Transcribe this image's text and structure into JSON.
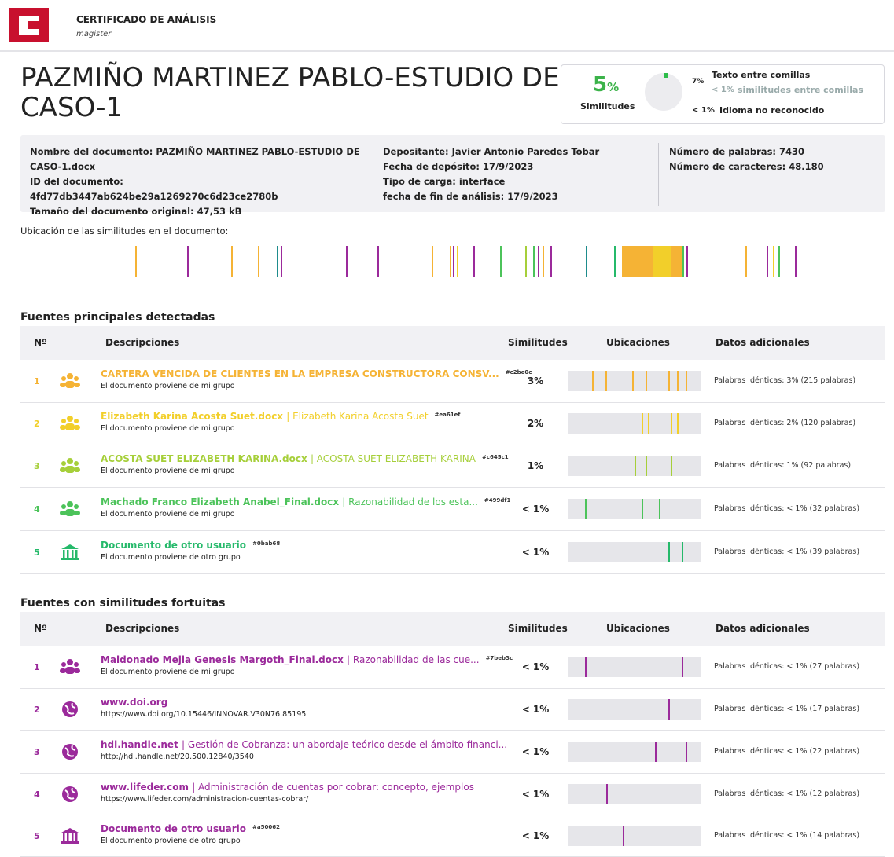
{
  "header": {
    "brand_title": "CERTIFICADO DE ANÁLISIS",
    "brand_sub": "magister"
  },
  "title": "PAZMIÑO MARTINEZ PABLO-ESTUDIO DE CASO-1",
  "summary": {
    "percent": "5",
    "percent_unit": "%",
    "label": "Similitudes",
    "items": [
      {
        "pct": "7%",
        "label": "Texto entre comillas"
      },
      {
        "pct": "< 1%",
        "label": "similitudes entre comillas"
      },
      {
        "pct": "< 1%",
        "label": "Idioma no reconocido"
      }
    ]
  },
  "info": [
    [
      {
        "label": "Nombre del documento:",
        "value": "PAZMIÑO MARTINEZ PABLO-ESTUDIO DE CASO-1.docx"
      },
      {
        "label": "ID del documento:",
        "value": "4fd77db3447ab624be29a1269270c6d23ce2780b"
      },
      {
        "label": "Tamaño del documento original:",
        "value": "47,53 kB"
      }
    ],
    [
      {
        "label": "Depositante:",
        "value": "Javier Antonio Paredes Tobar"
      },
      {
        "label": "Fecha de depósito:",
        "value": "17/9/2023"
      },
      {
        "label": "Tipo de carga:",
        "value": "interface"
      },
      {
        "label": "fecha de fin de análisis:",
        "value": "17/9/2023"
      }
    ],
    [
      {
        "label": "Número de palabras:",
        "value": "7430"
      },
      {
        "label": "Número de caracteres:",
        "value": "48.180"
      }
    ]
  ],
  "location_label": "Ubicación de las similitudes en el documento:",
  "sections": [
    {
      "title": "Fuentes principales detectadas",
      "headers": [
        "Nº",
        "Descripciones",
        "Similitudes",
        "Ubicaciones",
        "Datos adicionales"
      ],
      "rows": [
        {
          "num": "1",
          "name": "CARTERA VENCIDA DE CLIENTES EN LA EMPRESA CONSTRUCTORA CONSV...",
          "detail": "",
          "tag": "#c2be0c",
          "sub": "El documento proviene de mi grupo",
          "similarity": "3%",
          "data": "Palabras idénticas: 3% (215 palabras)",
          "color": "#f5b335",
          "icon": "group"
        },
        {
          "num": "2",
          "name": "Elizabeth Karina Acosta Suet.docx",
          "detail": "| Elizabeth Karina Acosta Suet",
          "tag": "#ea61ef",
          "sub": "El documento proviene de mi grupo",
          "similarity": "2%",
          "data": "Palabras idénticas: 2% (120 palabras)",
          "color": "#f2cf2a",
          "icon": "group"
        },
        {
          "num": "3",
          "name": "ACOSTA SUET ELIZABETH KARINA.docx",
          "detail": "| ACOSTA SUET ELIZABETH KARINA",
          "tag": "#c645c1",
          "sub": "El documento proviene de mi grupo",
          "similarity": "1%",
          "data": "Palabras idénticas: 1% (92 palabras)",
          "color": "#a6cf3a",
          "icon": "group"
        },
        {
          "num": "4",
          "name": "Machado Franco Elizabeth Anabel_Final.docx",
          "detail": "| Razonabilidad de los esta...",
          "tag": "#499df1",
          "sub": "El documento proviene de mi grupo",
          "similarity": "< 1%",
          "data": "Palabras idénticas: < 1% (32 palabras)",
          "color": "#4cc35a",
          "icon": "group"
        },
        {
          "num": "5",
          "name": "Documento de otro usuario",
          "detail": "",
          "tag": "#0bab68",
          "sub": "El documento proviene de otro grupo",
          "similarity": "< 1%",
          "data": "Palabras idénticas: < 1% (39 palabras)",
          "color": "#25b96a",
          "icon": "bank"
        }
      ]
    },
    {
      "title": "Fuentes con similitudes fortuitas",
      "headers": [
        "Nº",
        "Descripciones",
        "Similitudes",
        "Ubicaciones",
        "Datos adicionales"
      ],
      "rows": [
        {
          "num": "1",
          "name": "Maldonado Mejia Genesis Margoth_Final.docx",
          "detail": "| Razonabilidad de las cue...",
          "tag": "#7beb3c",
          "sub": "El documento proviene de mi grupo",
          "similarity": "< 1%",
          "data": "Palabras idénticas: < 1% (27 palabras)",
          "color": "#9b2a9b",
          "icon": "group"
        },
        {
          "num": "2",
          "name": "www.doi.org",
          "detail": "",
          "tag": "",
          "sub": "https://www.doi.org/10.15446/INNOVAR.V30N76.85195",
          "similarity": "< 1%",
          "data": "Palabras idénticas: < 1% (17 palabras)",
          "color": "#9b2a9b",
          "icon": "globe"
        },
        {
          "num": "3",
          "name": "hdl.handle.net",
          "detail": "| Gestión de Cobranza: un abordaje teórico desde el ámbito financi...",
          "tag": "",
          "sub": "http://hdl.handle.net/20.500.12840/3540",
          "similarity": "< 1%",
          "data": "Palabras idénticas: < 1% (22 palabras)",
          "color": "#9b2a9b",
          "icon": "globe"
        },
        {
          "num": "4",
          "name": "www.lifeder.com",
          "detail": "| Administración de cuentas por cobrar: concepto, ejemplos",
          "tag": "",
          "sub": "https://www.lifeder.com/administracion-cuentas-cobrar/",
          "similarity": "< 1%",
          "data": "Palabras idénticas: < 1% (12 palabras)",
          "color": "#9b2a9b",
          "icon": "globe"
        },
        {
          "num": "5",
          "name": "Documento de otro usuario",
          "detail": "",
          "tag": "#a50062",
          "sub": "El documento proviene de otro grupo",
          "similarity": "< 1%",
          "data": "Palabras idénticas: < 1% (14 palabras)",
          "color": "#9b2a9b",
          "icon": "bank"
        }
      ]
    }
  ]
}
